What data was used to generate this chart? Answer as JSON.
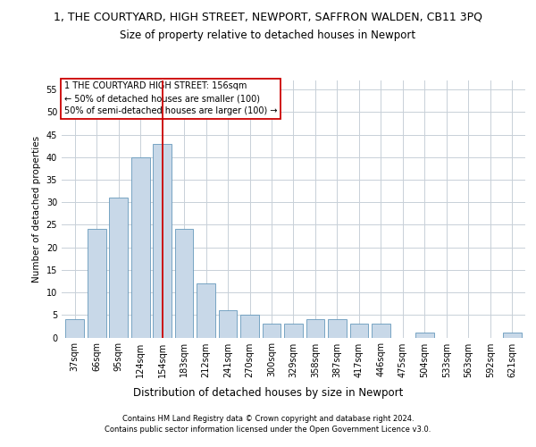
{
  "title": "1, THE COURTYARD, HIGH STREET, NEWPORT, SAFFRON WALDEN, CB11 3PQ",
  "subtitle": "Size of property relative to detached houses in Newport",
  "xlabel": "Distribution of detached houses by size in Newport",
  "ylabel": "Number of detached properties",
  "categories": [
    "37sqm",
    "66sqm",
    "95sqm",
    "124sqm",
    "154sqm",
    "183sqm",
    "212sqm",
    "241sqm",
    "270sqm",
    "300sqm",
    "329sqm",
    "358sqm",
    "387sqm",
    "417sqm",
    "446sqm",
    "475sqm",
    "504sqm",
    "533sqm",
    "563sqm",
    "592sqm",
    "621sqm"
  ],
  "values": [
    4,
    24,
    31,
    40,
    43,
    24,
    12,
    6,
    5,
    3,
    3,
    4,
    4,
    3,
    3,
    0,
    1,
    0,
    0,
    0,
    1
  ],
  "bar_color": "#c8d8e8",
  "bar_edge_color": "#6699bb",
  "vline_index": 4,
  "vline_color": "#cc0000",
  "ylim": [
    0,
    57
  ],
  "yticks": [
    0,
    5,
    10,
    15,
    20,
    25,
    30,
    35,
    40,
    45,
    50,
    55
  ],
  "annotation_lines": [
    "1 THE COURTYARD HIGH STREET: 156sqm",
    "← 50% of detached houses are smaller (100)",
    "50% of semi-detached houses are larger (100) →"
  ],
  "annotation_box_color": "#ffffff",
  "annotation_box_edge": "#cc0000",
  "footer1": "Contains HM Land Registry data © Crown copyright and database right 2024.",
  "footer2": "Contains public sector information licensed under the Open Government Licence v3.0.",
  "background_color": "#ffffff",
  "grid_color": "#c8d0d8",
  "title_fontsize": 9,
  "subtitle_fontsize": 8.5,
  "xlabel_fontsize": 8.5,
  "ylabel_fontsize": 7.5,
  "tick_fontsize": 7,
  "annotation_fontsize": 7,
  "footer_fontsize": 6
}
